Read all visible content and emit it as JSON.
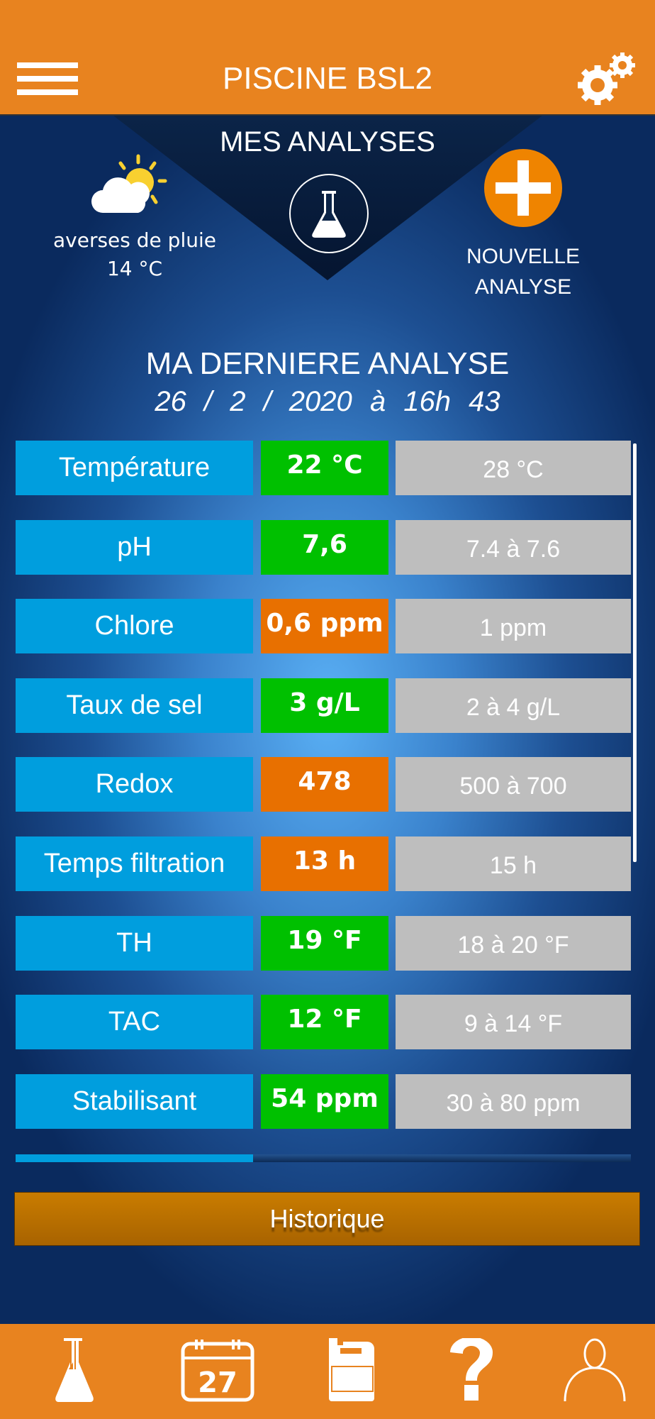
{
  "header": {
    "title": "PISCINE  BSL2",
    "menu_icon": "hamburger-menu-icon",
    "settings_icon": "gears-icon"
  },
  "colors": {
    "orange": "#e8831f",
    "label_blue": "#009ede",
    "ok_green": "#00c000",
    "warn_orange": "#e87000",
    "ref_gray": "#bebebe"
  },
  "section": {
    "title": "MES ANALYSES"
  },
  "weather": {
    "description": "averses de pluie",
    "temperature": "14 °C",
    "icon": "partly-cloudy-icon"
  },
  "new_analysis": {
    "label_line1": "NOUVELLE",
    "label_line2": "ANALYSE"
  },
  "last_analysis": {
    "title": "MA DERNIERE ANALYSE",
    "date": "26  /  2  / 2020   à   16h 43"
  },
  "rows": [
    {
      "label": "Température",
      "value": "22 °C",
      "status": "ok",
      "reference": "28 °C"
    },
    {
      "label": "pH",
      "value": "7,6",
      "status": "ok",
      "reference": "7.4 à 7.6"
    },
    {
      "label": "Chlore",
      "value": "0,6 ppm",
      "status": "warn",
      "reference": "1 ppm"
    },
    {
      "label": "Taux de sel",
      "value": "3 g/L",
      "status": "ok",
      "reference": "2 à 4 g/L"
    },
    {
      "label": "Redox",
      "value": "478",
      "status": "warn",
      "reference": "500 à 700"
    },
    {
      "label": "Temps filtration",
      "value": "13 h",
      "status": "warn",
      "reference": "15 h"
    },
    {
      "label": "TH",
      "value": "19 °F",
      "status": "ok",
      "reference": "18 à 20  °F"
    },
    {
      "label": "TAC",
      "value": "12 °F",
      "status": "ok",
      "reference": "9 à 14  °F"
    },
    {
      "label": "Stabilisant",
      "value": "54 ppm",
      "status": "ok",
      "reference": "30 à 80 ppm"
    }
  ],
  "history_button": "Historique",
  "bottom_nav": [
    "flask-icon",
    "calendar-icon",
    "product-can-icon",
    "help-icon",
    "user-icon"
  ],
  "calendar_day": "27"
}
